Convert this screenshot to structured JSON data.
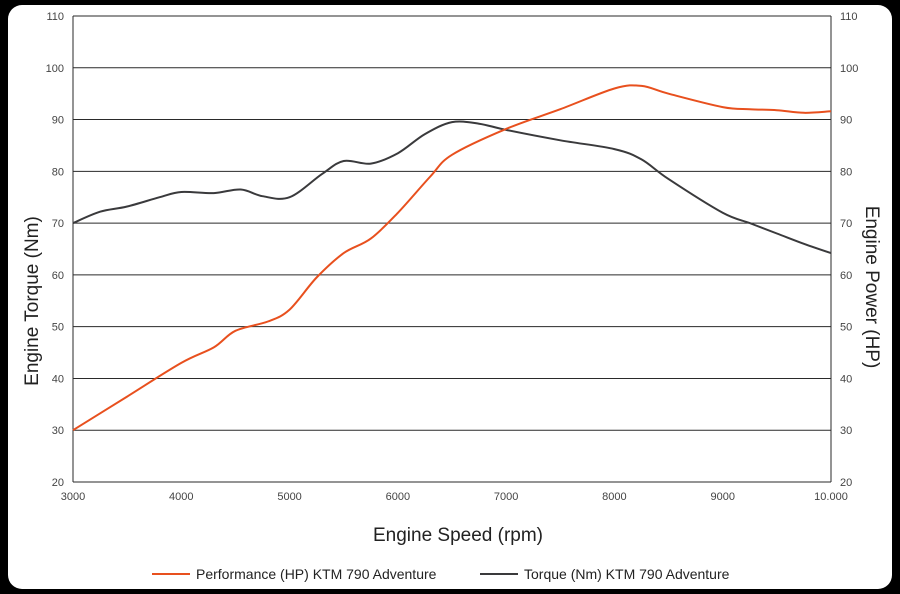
{
  "chart_data": {
    "type": "line",
    "xlabel": "Engine Speed (rpm)",
    "ylabel_left": "Engine Torque (Nm)",
    "ylabel_right": "Engine Power (HP)",
    "xlim": [
      3000,
      10000
    ],
    "ylim": [
      20,
      110
    ],
    "grid": true,
    "legend_position": "bottom-center",
    "x_ticks": [
      "3000",
      "4000",
      "5000",
      "6000",
      "7000",
      "8000",
      "9000",
      "10.000"
    ],
    "x_tick_values": [
      3000,
      4000,
      5000,
      6000,
      7000,
      8000,
      9000,
      10000
    ],
    "y_ticks": [
      "20",
      "30",
      "40",
      "50",
      "60",
      "70",
      "80",
      "90",
      "100",
      "110"
    ],
    "y_tick_values": [
      20,
      30,
      40,
      50,
      60,
      70,
      80,
      90,
      100,
      110
    ],
    "series": [
      {
        "name": "Performance (HP) KTM 790 Adventure",
        "color": "#e8501e",
        "x": [
          3000,
          3500,
          4000,
          4300,
          4500,
          4800,
          5000,
          5250,
          5500,
          5750,
          6000,
          6300,
          6500,
          7000,
          7500,
          8000,
          8250,
          8500,
          9000,
          9250,
          9500,
          9750,
          10000
        ],
        "values": [
          30,
          36.5,
          43,
          46,
          49.2,
          51,
          53.3,
          59.5,
          64.2,
          67,
          72,
          79,
          83.2,
          88.2,
          92,
          96,
          96.5,
          95,
          92.4,
          92,
          91.8,
          91.3,
          91.6
        ]
      },
      {
        "name": "Torque (Nm) KTM 790 Adventure",
        "color": "#3a3a3c",
        "x": [
          3000,
          3250,
          3500,
          3800,
          4000,
          4300,
          4550,
          4750,
          5000,
          5300,
          5500,
          5750,
          6000,
          6250,
          6500,
          6750,
          7000,
          7500,
          8000,
          8250,
          8500,
          9000,
          9250,
          9500,
          9750,
          10000
        ],
        "values": [
          70,
          72.2,
          73.2,
          75,
          76,
          75.8,
          76.5,
          75.2,
          75,
          79.5,
          82,
          81.5,
          83.5,
          87.2,
          89.5,
          89.2,
          88,
          86,
          84.3,
          82.3,
          78.5,
          72,
          70,
          68,
          66,
          64.2
        ]
      }
    ]
  }
}
